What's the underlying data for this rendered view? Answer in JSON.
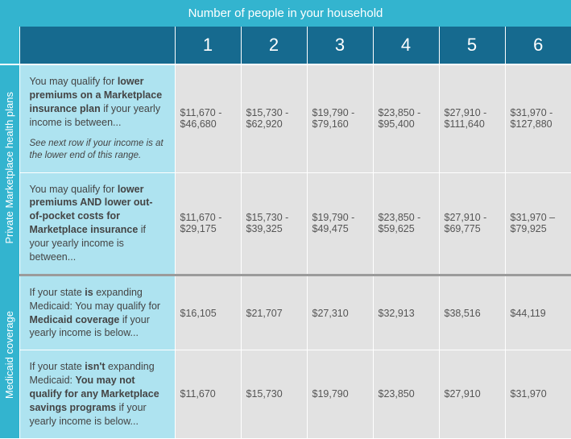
{
  "header": "Number of people in your household",
  "columns": [
    "1",
    "2",
    "3",
    "4",
    "5",
    "6"
  ],
  "sections": [
    {
      "label": "Private Marketplace health plans",
      "rows": [
        {
          "desc_pre": "You may qualify for ",
          "desc_bold": "lower premiums on a Marketplace insurance plan",
          "desc_post": " if your yearly income is between...",
          "sub": "See next row if your income is at the lower end of this range.",
          "values": [
            "$11,670 - $46,680",
            "$15,730 - $62,920",
            "$19,790 - $79,160",
            "$23,850 - $95,400",
            "$27,910 - $111,640",
            "$31,970 - $127,880"
          ]
        },
        {
          "desc_pre": "You may qualify for ",
          "desc_bold": "lower premiums AND lower out-of-pocket costs for Marketplace insurance",
          "desc_post": " if your yearly income is between...",
          "values": [
            "$11,670 - $29,175",
            "$15,730 - $39,325",
            "$19,790 - $49,475",
            "$23,850 - $59,625",
            "$27,910 - $69,775",
            "$31,970 – $79,925"
          ]
        }
      ]
    },
    {
      "label": "Medicaid coverage",
      "rows": [
        {
          "desc_pre": "If your state ",
          "desc_bold1": "is",
          "desc_mid": " expanding Medicaid: You may qualify for ",
          "desc_bold2": "Medicaid coverage",
          "desc_post": " if your yearly income is below...",
          "values": [
            "$16,105",
            "$21,707",
            "$27,310",
            "$32,913",
            "$38,516",
            "$44,119"
          ]
        },
        {
          "desc_pre": "If your state ",
          "desc_bold1": "isn't",
          "desc_mid": " expanding Medicaid: ",
          "desc_bold2": "You may not qualify for any Marketplace savings programs",
          "desc_post": " if your yearly income is below...",
          "values": [
            "$11,670",
            "$15,730",
            "$19,790",
            "$23,850",
            "$27,910",
            "$31,970"
          ]
        }
      ]
    }
  ]
}
